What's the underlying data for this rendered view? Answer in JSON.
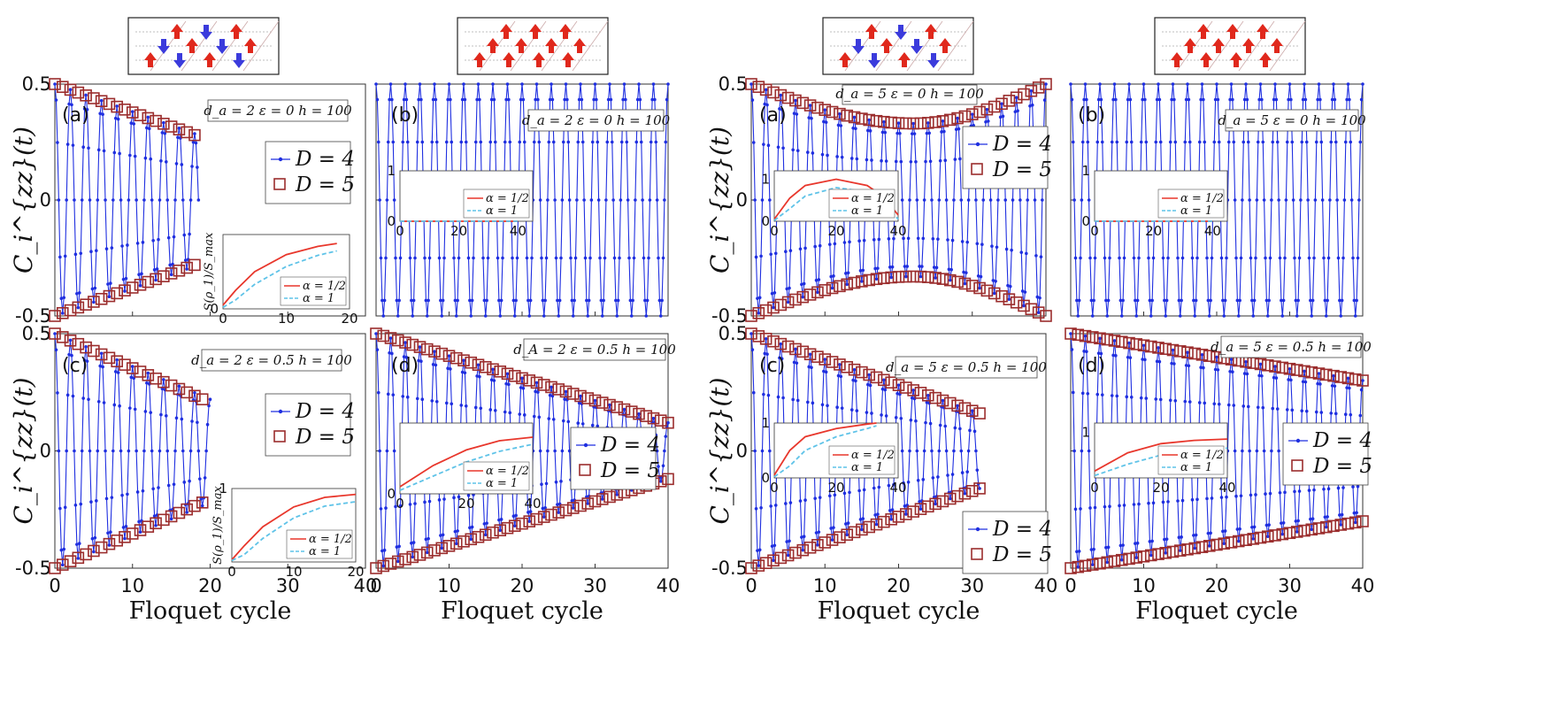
{
  "figure": {
    "xlabel": "Floquet cycle",
    "ylabel": "C_i^{zz}(t)",
    "inset_ylabel": "S(ρ_1)/S_max",
    "legend": {
      "blue": "D = 4",
      "red": "D = 5"
    },
    "inset_legend": {
      "red": "α = 1/2",
      "blue": "α = 1"
    },
    "colors": {
      "blue": "#1f2fe0",
      "red": "#9b2d2d",
      "inset_red": "#e8372c",
      "inset_blue": "#5fc3e8"
    },
    "lattice_icons": [
      {
        "pattern": "alternating",
        "group": "left"
      },
      {
        "pattern": "all_up",
        "group": "left"
      },
      {
        "pattern": "alternating",
        "group": "right"
      },
      {
        "pattern": "all_up",
        "group": "right"
      }
    ]
  },
  "chart_data": [
    {
      "type": "line",
      "panel": "(a)",
      "annotation": "d_a = 2  ε = 0  h = 100",
      "x_range": [
        0,
        40
      ],
      "y_range": [
        -0.5,
        0.5
      ],
      "x_ticks": [
        "0",
        "10",
        "20",
        "30",
        "40"
      ],
      "y_ticks": [
        "-0.5",
        "0",
        "0.5"
      ],
      "show_x_ticks": false,
      "show_y_ticks": true,
      "show_ylabel": true,
      "show_xlabel": false,
      "series": [
        {
          "name": "D = 4",
          "x_end": 18.5,
          "amplitude": {
            "model": "linear",
            "start": 0.5,
            "end": 0.28
          }
        },
        {
          "name": "D = 5",
          "x_end": 18,
          "amplitude": {
            "model": "linear",
            "start": 0.5,
            "end": 0.28
          }
        }
      ],
      "legend_position": "right",
      "inset": {
        "type": "line",
        "x_range": [
          0,
          20
        ],
        "y_range": [
          0,
          1
        ],
        "x_ticks": [
          "0",
          "10",
          "20"
        ],
        "y_ticks": [
          "0"
        ],
        "position": "bottom-right",
        "show_ylabel": true,
        "series": [
          {
            "name": "α = 1/2",
            "x": [
              0,
              2,
              5,
              10,
              15,
              18
            ],
            "y": [
              0.05,
              0.25,
              0.5,
              0.73,
              0.84,
              0.88
            ]
          },
          {
            "name": "α = 1",
            "x": [
              0,
              2,
              5,
              10,
              15,
              18
            ],
            "y": [
              0.02,
              0.12,
              0.33,
              0.57,
              0.72,
              0.78
            ]
          }
        ]
      }
    },
    {
      "type": "line",
      "panel": "(b)",
      "annotation": "d_a = 2  ε = 0  h = 100",
      "x_range": [
        0,
        40
      ],
      "y_range": [
        -0.5,
        0.5
      ],
      "x_ticks": [
        "0",
        "10",
        "20",
        "30",
        "40"
      ],
      "y_ticks": [
        "-0.5",
        "0",
        "0.5"
      ],
      "show_x_ticks": false,
      "show_y_ticks": false,
      "show_ylabel": false,
      "show_xlabel": false,
      "series": [
        {
          "name": "D = 4",
          "x_end": 40,
          "amplitude": {
            "model": "linear",
            "start": 0.5,
            "end": 0.5
          }
        }
      ],
      "legend_position": "none",
      "inset": {
        "type": "line",
        "x_range": [
          0,
          45
        ],
        "y_range": [
          0,
          1
        ],
        "x_ticks": [
          "0",
          "20",
          "40"
        ],
        "y_ticks": [
          "0",
          "1"
        ],
        "position": "top-left",
        "show_ylabel": false,
        "series": [
          {
            "name": "α = 1/2",
            "x": [
              0,
              40
            ],
            "y": [
              0,
              0
            ]
          },
          {
            "name": "α = 1",
            "x": [
              0,
              40
            ],
            "y": [
              0,
              0
            ]
          }
        ]
      }
    },
    {
      "type": "line",
      "panel": "(c)",
      "annotation": "d_a = 2  ε = 0.5  h = 100",
      "x_range": [
        0,
        40
      ],
      "y_range": [
        -0.5,
        0.5
      ],
      "x_ticks": [
        "0",
        "10",
        "20",
        "30",
        "40"
      ],
      "y_ticks": [
        "-0.5",
        "0",
        "0.5"
      ],
      "show_x_ticks": true,
      "show_y_ticks": true,
      "show_ylabel": true,
      "show_xlabel": true,
      "series": [
        {
          "name": "D = 4",
          "x_end": 20,
          "amplitude": {
            "model": "linear",
            "start": 0.5,
            "end": 0.22
          }
        },
        {
          "name": "D = 5",
          "x_end": 19,
          "amplitude": {
            "model": "linear",
            "start": 0.5,
            "end": 0.22
          }
        }
      ],
      "legend_position": "right",
      "inset": {
        "type": "line",
        "x_range": [
          0,
          20
        ],
        "y_range": [
          0,
          1
        ],
        "x_ticks": [
          "0",
          "10",
          "20"
        ],
        "y_ticks": [
          "1"
        ],
        "position": "bottom-right",
        "show_ylabel": true,
        "series": [
          {
            "name": "α = 1/2",
            "x": [
              0,
              2,
              5,
              10,
              15,
              20
            ],
            "y": [
              0.03,
              0.22,
              0.48,
              0.75,
              0.88,
              0.92
            ]
          },
          {
            "name": "α = 1",
            "x": [
              0,
              2,
              5,
              10,
              15,
              20
            ],
            "y": [
              0.02,
              0.1,
              0.32,
              0.6,
              0.76,
              0.82
            ]
          }
        ]
      }
    },
    {
      "type": "line",
      "panel": "(d)",
      "annotation": "d_A = 2  ε = 0.5  h = 100",
      "x_range": [
        0,
        40
      ],
      "y_range": [
        -0.5,
        0.5
      ],
      "x_ticks": [
        "0",
        "10",
        "20",
        "30",
        "40"
      ],
      "y_ticks": [
        "-0.5",
        "0",
        "0.5"
      ],
      "show_x_ticks": true,
      "show_y_ticks": false,
      "show_ylabel": false,
      "show_xlabel": true,
      "series": [
        {
          "name": "D = 4",
          "x_end": 40,
          "amplitude": {
            "model": "linear",
            "start": 0.5,
            "end": 0.12
          }
        },
        {
          "name": "D = 5",
          "x_end": 40,
          "amplitude": {
            "model": "linear",
            "start": 0.5,
            "end": 0.12
          }
        }
      ],
      "legend_position": "right",
      "inset": {
        "type": "line",
        "x_range": [
          0,
          40
        ],
        "y_range": [
          0,
          1
        ],
        "x_ticks": [
          "0",
          "20",
          "40"
        ],
        "y_ticks": [
          "0"
        ],
        "position": "middle-left",
        "show_ylabel": false,
        "series": [
          {
            "name": "α = 1/2",
            "x": [
              0,
              10,
              20,
              30,
              40
            ],
            "y": [
              0.1,
              0.4,
              0.62,
              0.75,
              0.8
            ]
          },
          {
            "name": "α = 1",
            "x": [
              0,
              10,
              20,
              30,
              40
            ],
            "y": [
              0.05,
              0.25,
              0.45,
              0.6,
              0.7
            ]
          }
        ]
      }
    },
    {
      "type": "line",
      "panel": "(a)",
      "annotation": "d_a = 5  ε = 0  h = 100",
      "x_range": [
        0,
        40
      ],
      "y_range": [
        -0.5,
        0.5
      ],
      "x_ticks": [
        "0",
        "10",
        "20",
        "30",
        "40"
      ],
      "y_ticks": [
        "-0.5",
        "0",
        "0.5"
      ],
      "show_x_ticks": false,
      "show_y_ticks": true,
      "show_ylabel": true,
      "show_xlabel": false,
      "series": [
        {
          "name": "D = 4",
          "x_end": 40,
          "amplitude": {
            "model": "dip",
            "start": 0.5,
            "min": 0.33,
            "min_at": 22,
            "end": 0.5
          }
        },
        {
          "name": "D = 5",
          "x_end": 40,
          "amplitude": {
            "model": "dip",
            "start": 0.5,
            "min": 0.33,
            "min_at": 22,
            "end": 0.5
          }
        }
      ],
      "legend_position": "right",
      "inset": {
        "type": "line",
        "x_range": [
          0,
          40
        ],
        "y_range": [
          0,
          1.2
        ],
        "x_ticks": [
          "0",
          "20",
          "40"
        ],
        "y_ticks": [
          "0",
          "1"
        ],
        "position": "middle-left",
        "show_ylabel": false,
        "series": [
          {
            "name": "α = 1/2",
            "x": [
              0,
              5,
              10,
              20,
              30,
              35,
              40
            ],
            "y": [
              0.05,
              0.55,
              0.85,
              1.0,
              0.85,
              0.6,
              0.15
            ]
          },
          {
            "name": "α = 1",
            "x": [
              0,
              5,
              10,
              20,
              30,
              35,
              40
            ],
            "y": [
              0.02,
              0.3,
              0.6,
              0.8,
              0.7,
              0.45,
              0.05
            ]
          }
        ]
      }
    },
    {
      "type": "line",
      "panel": "(b)",
      "annotation": "d_a = 5  ε = 0  h = 100",
      "x_range": [
        0,
        40
      ],
      "y_range": [
        -0.5,
        0.5
      ],
      "x_ticks": [
        "0",
        "10",
        "20",
        "30",
        "40"
      ],
      "y_ticks": [
        "-0.5",
        "0",
        "0.5"
      ],
      "show_x_ticks": false,
      "show_y_ticks": false,
      "show_ylabel": false,
      "show_xlabel": false,
      "series": [
        {
          "name": "D = 4",
          "x_end": 40,
          "amplitude": {
            "model": "linear",
            "start": 0.5,
            "end": 0.5
          }
        }
      ],
      "legend_position": "none",
      "inset": {
        "type": "line",
        "x_range": [
          0,
          45
        ],
        "y_range": [
          0,
          1
        ],
        "x_ticks": [
          "0",
          "20",
          "40"
        ],
        "y_ticks": [
          "0",
          "1"
        ],
        "position": "middle-left",
        "show_ylabel": false,
        "series": [
          {
            "name": "α = 1/2",
            "x": [
              0,
              40
            ],
            "y": [
              0,
              0
            ]
          },
          {
            "name": "α = 1",
            "x": [
              0,
              40
            ],
            "y": [
              0,
              0
            ]
          }
        ]
      }
    },
    {
      "type": "line",
      "panel": "(c)",
      "annotation": "d_a = 5  ε = 0.5  h = 100",
      "x_range": [
        0,
        40
      ],
      "y_range": [
        -0.5,
        0.5
      ],
      "x_ticks": [
        "0",
        "10",
        "20",
        "30",
        "40"
      ],
      "y_ticks": [
        "-0.5",
        "0",
        "0.5"
      ],
      "show_x_ticks": true,
      "show_y_ticks": true,
      "show_ylabel": true,
      "show_xlabel": true,
      "series": [
        {
          "name": "D = 4",
          "x_end": 31,
          "amplitude": {
            "model": "linear",
            "start": 0.5,
            "end": 0.16
          }
        },
        {
          "name": "D = 5",
          "x_end": 31,
          "amplitude": {
            "model": "linear",
            "start": 0.5,
            "end": 0.16
          }
        }
      ],
      "legend_position": "bottom-right",
      "inset": {
        "type": "line",
        "x_range": [
          0,
          40
        ],
        "y_range": [
          0,
          1
        ],
        "x_ticks": [
          "0",
          "20",
          "40"
        ],
        "y_ticks": [
          "0",
          "1"
        ],
        "position": "middle-left",
        "show_ylabel": false,
        "series": [
          {
            "name": "α = 1/2",
            "x": [
              0,
              5,
              10,
              20,
              30,
              33
            ],
            "y": [
              0.05,
              0.5,
              0.75,
              0.9,
              0.98,
              1.0
            ]
          },
          {
            "name": "α = 1",
            "x": [
              0,
              5,
              10,
              20,
              30,
              33
            ],
            "y": [
              0.02,
              0.22,
              0.5,
              0.75,
              0.9,
              0.95
            ]
          }
        ]
      }
    },
    {
      "type": "line",
      "panel": "(d)",
      "annotation": "d_a = 5  ε = 0.5  h = 100",
      "x_range": [
        0,
        40
      ],
      "y_range": [
        -0.5,
        0.5
      ],
      "x_ticks": [
        "0",
        "10",
        "20",
        "30",
        "40"
      ],
      "y_ticks": [
        "-0.5",
        "0",
        "0.5"
      ],
      "show_x_ticks": true,
      "show_y_ticks": false,
      "show_ylabel": false,
      "show_xlabel": true,
      "series": [
        {
          "name": "D = 4",
          "x_end": 40,
          "amplitude": {
            "model": "linear",
            "start": 0.5,
            "end": 0.3
          }
        },
        {
          "name": "D = 5",
          "x_end": 40,
          "amplitude": {
            "model": "linear",
            "start": 0.5,
            "end": 0.3
          }
        }
      ],
      "legend_position": "right",
      "inset": {
        "type": "line",
        "x_range": [
          0,
          40
        ],
        "y_range": [
          0,
          1.2
        ],
        "x_ticks": [
          "0",
          "20",
          "40"
        ],
        "y_ticks": [
          "1"
        ],
        "position": "middle-left",
        "show_ylabel": false,
        "series": [
          {
            "name": "α = 1/2",
            "x": [
              0,
              10,
              20,
              30,
              40
            ],
            "y": [
              0.15,
              0.55,
              0.75,
              0.82,
              0.85
            ]
          },
          {
            "name": "α = 1",
            "x": [
              0,
              10,
              20,
              30,
              40
            ],
            "y": [
              0.05,
              0.3,
              0.5,
              0.6,
              0.65
            ]
          }
        ]
      }
    }
  ]
}
